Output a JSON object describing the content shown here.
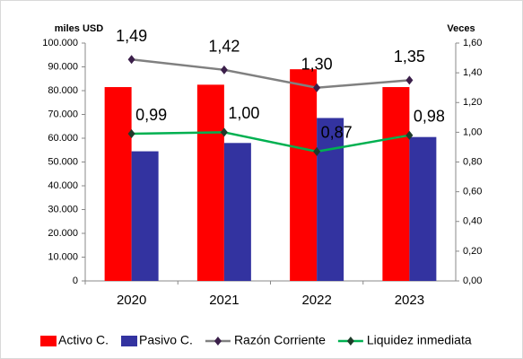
{
  "chart_data": {
    "type": "bar-line",
    "y_label": "miles USD",
    "y2_label": "Veces",
    "categories": [
      "2020",
      "2021",
      "2022",
      "2023"
    ],
    "series": [
      {
        "name": "Activo C.",
        "type": "bar",
        "color": "#ff0000",
        "values": [
          81500,
          82500,
          89000,
          81500
        ]
      },
      {
        "name": "Pasivo C.",
        "type": "bar",
        "color": "#3333a0",
        "values": [
          54500,
          58000,
          68500,
          60500
        ]
      },
      {
        "name": "Razón Corriente",
        "type": "line",
        "axis": "y2",
        "color": "#808080",
        "marker_color": "#3b1f4a",
        "values": [
          1.49,
          1.42,
          1.3,
          1.35
        ],
        "value_labels": [
          "1,49",
          "1,42",
          "1,30",
          "1,35"
        ]
      },
      {
        "name": "Liquidez inmediata",
        "type": "line",
        "axis": "y2",
        "color": "#00b050",
        "marker_color": "#1f3b2a",
        "values": [
          0.99,
          1.0,
          0.87,
          0.98
        ],
        "value_labels": [
          "0,99",
          "1,00",
          "0,87",
          "0,98"
        ]
      }
    ],
    "ylim": [
      0,
      100000
    ],
    "yticks": [
      0,
      {
        "value": 10000,
        "label": "10.000"
      },
      {
        "value": 20000,
        "label": "20.000"
      },
      {
        "value": 30000,
        "label": "30.000"
      },
      {
        "value": 40000,
        "label": "40.000"
      },
      {
        "value": 50000,
        "label": "50.000"
      },
      {
        "value": 60000,
        "label": "60.000"
      },
      {
        "value": 70000,
        "label": "70.000"
      },
      {
        "value": 80000,
        "label": "80.000"
      },
      {
        "value": 90000,
        "label": "90.000"
      },
      {
        "value": 100000,
        "label": "100.000"
      }
    ],
    "y2lim": [
      0,
      1.6
    ],
    "y2ticks": [
      {
        "value": 0,
        "label": "0,00"
      },
      {
        "value": 0.2,
        "label": "0,20"
      },
      {
        "value": 0.4,
        "label": "0,40"
      },
      {
        "value": 0.6,
        "label": "0,60"
      },
      {
        "value": 0.8,
        "label": "0,80"
      },
      {
        "value": 1.0,
        "label": "1,00"
      },
      {
        "value": 1.2,
        "label": "1,20"
      },
      {
        "value": 1.4,
        "label": "1,40"
      },
      {
        "value": 1.6,
        "label": "1,60"
      }
    ],
    "legend": "bottom",
    "grid": false
  }
}
